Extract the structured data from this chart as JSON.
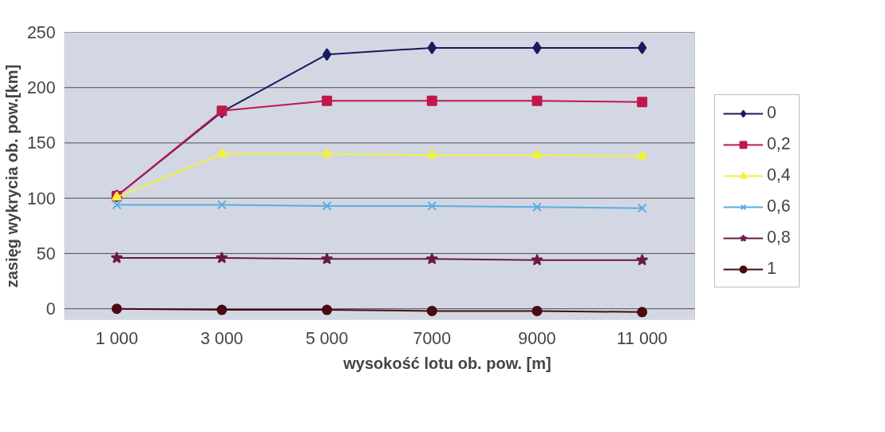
{
  "chart_data": {
    "type": "line",
    "xlabel": "wysokość lotu ob. pow. [m]",
    "ylabel": "zasięg wykrycia ob. pow.[km]",
    "categories": [
      "1 000",
      "3 000",
      "5 000",
      "7000",
      "9000",
      "11 000"
    ],
    "series": [
      {
        "name": "0",
        "color": "#1a1a5e",
        "marker": "diamond",
        "values": [
          102,
          178,
          230,
          236,
          236,
          236
        ]
      },
      {
        "name": "0,2",
        "color": "#c0184a",
        "marker": "square",
        "values": [
          102,
          179,
          188,
          188,
          188,
          187
        ]
      },
      {
        "name": "0,4",
        "color": "#f2f23a",
        "marker": "triangle",
        "values": [
          101,
          140,
          140,
          139,
          139,
          138
        ]
      },
      {
        "name": "0,6",
        "color": "#5aaee0",
        "marker": "cross",
        "values": [
          94,
          94,
          93,
          93,
          92,
          91
        ]
      },
      {
        "name": "0,8",
        "color": "#6a1a4a",
        "marker": "star",
        "values": [
          46,
          46,
          45,
          45,
          44,
          44
        ]
      },
      {
        "name": "1",
        "color": "#4a0a10",
        "marker": "circle",
        "values": [
          0,
          -1,
          -1,
          -2,
          -2,
          -3
        ]
      }
    ],
    "ylim": [
      -10,
      250
    ],
    "yticks": [
      0,
      50,
      100,
      150,
      200,
      250
    ],
    "grid": "y",
    "legend": "right",
    "line_style": "solid"
  }
}
